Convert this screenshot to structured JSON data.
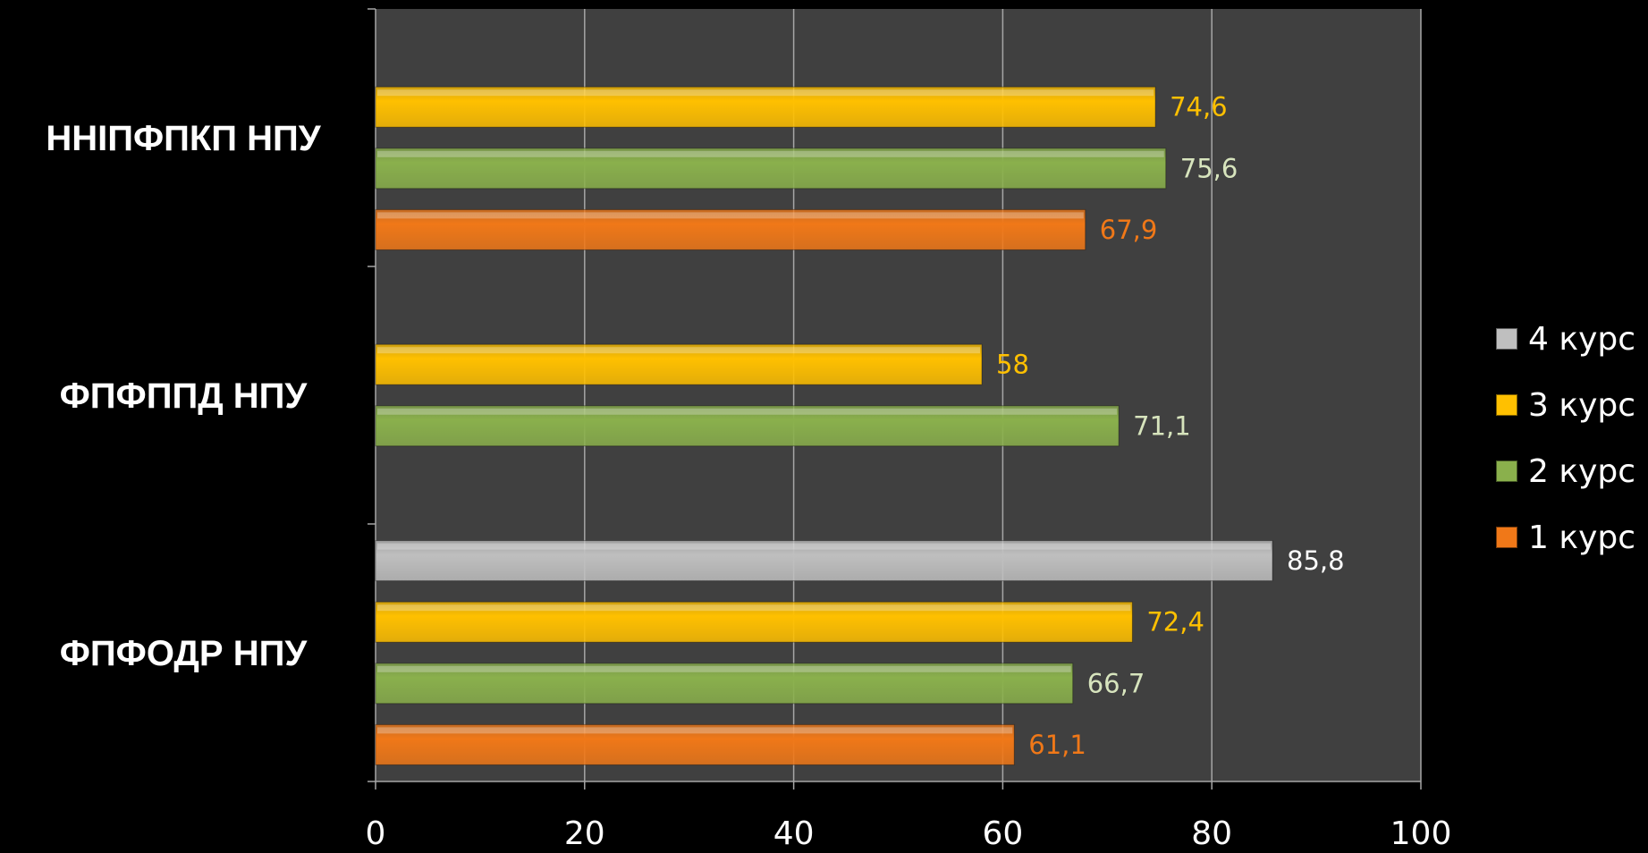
{
  "chart_data": {
    "type": "bar",
    "orientation": "horizontal",
    "categories": [
      "ННІПФПКП НПУ",
      "ФПФППД НПУ",
      "ФПФОДР НПУ"
    ],
    "series": [
      {
        "name": "4 курс",
        "values": [
          null,
          null,
          85.8
        ],
        "labels": [
          null,
          null,
          "85,8"
        ],
        "color": "#bfbfbf",
        "label_color": "#ffffff"
      },
      {
        "name": "3 курс",
        "values": [
          74.6,
          58,
          72.4
        ],
        "labels": [
          "74,6",
          "58",
          "72,4"
        ],
        "color": "#ffc000",
        "label_color": "#ffc000"
      },
      {
        "name": "2 курс",
        "values": [
          75.6,
          71.1,
          66.7
        ],
        "labels": [
          "75,6",
          "71,1",
          "66,7"
        ],
        "color": "#8ab04c",
        "label_color": "#d7e4bd"
      },
      {
        "name": "1 курс",
        "values": [
          67.9,
          null,
          61.1
        ],
        "labels": [
          "67,9",
          null,
          "61,1"
        ],
        "color": "#f07818",
        "label_color": "#f07818"
      }
    ],
    "xlim": [
      0,
      100
    ],
    "xticks": [
      "0",
      "20",
      "40",
      "60",
      "80",
      "100"
    ],
    "grid": true,
    "plot_background": "#404040",
    "legend": "right"
  }
}
